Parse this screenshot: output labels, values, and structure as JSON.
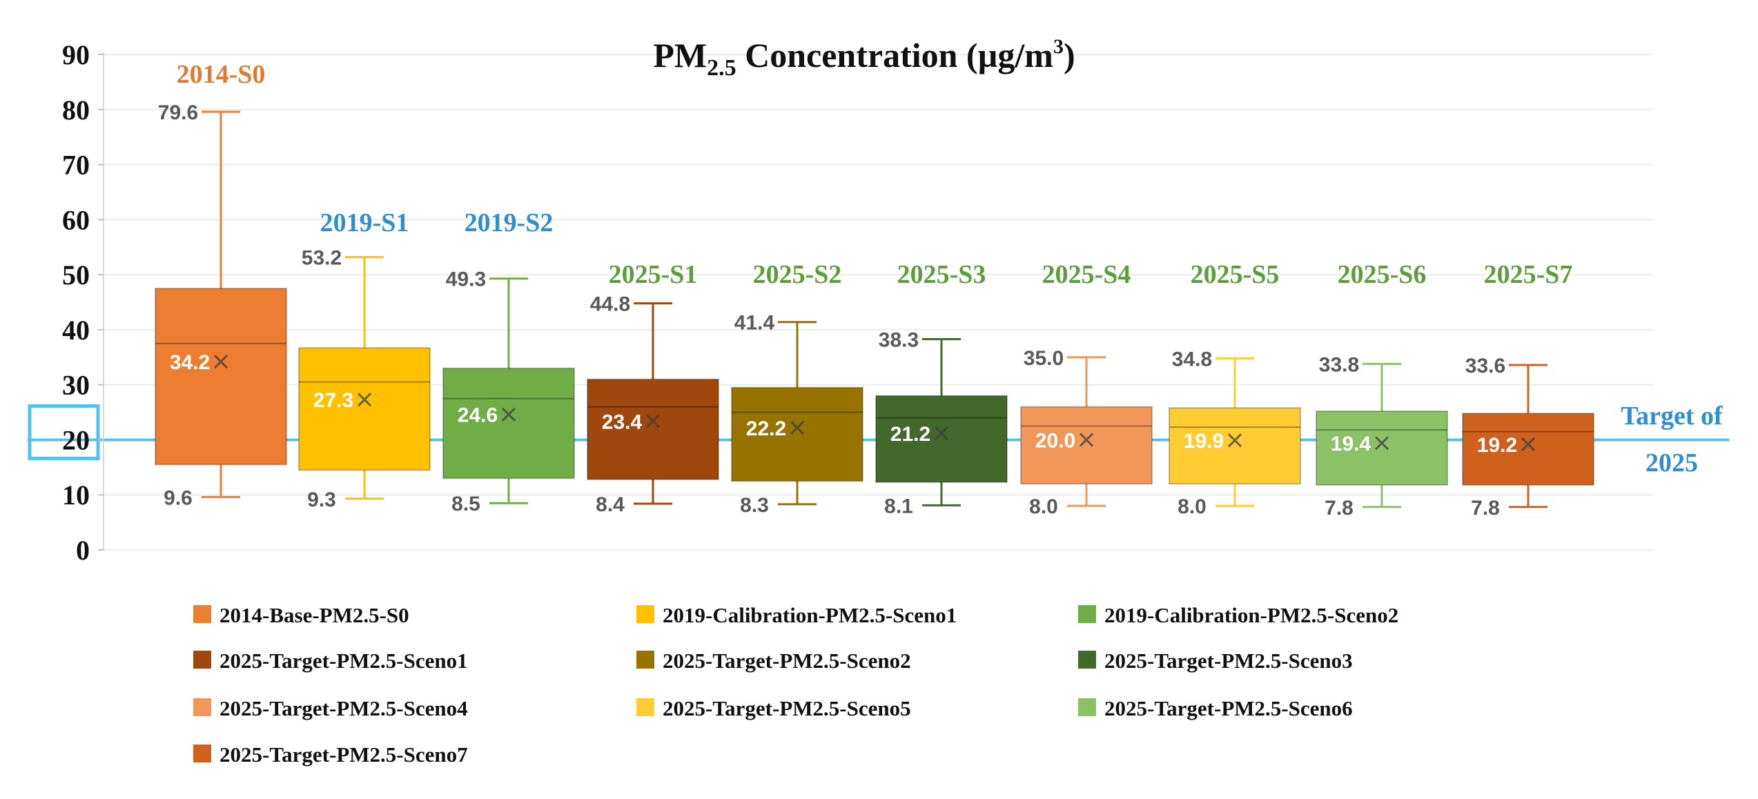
{
  "chart_data": {
    "type": "box",
    "title_main": "PM",
    "title_sub": "2.5",
    "title_rest": " Concentration (µg/m",
    "title_sup": "3",
    "title_end": ")",
    "ylim": [
      0,
      90
    ],
    "yticks": [
      0,
      10,
      20,
      30,
      40,
      50,
      60,
      70,
      80,
      90
    ],
    "target": {
      "value": 20,
      "label_line1": "Target of",
      "label_line2": "2025",
      "color": "#52c3ef",
      "text_color": "#2e8ed0"
    },
    "series": [
      {
        "label": "2014-S0",
        "legend": "2014-Base-PM2.5-S0",
        "color": "#ed7d31",
        "label_color": "#e07a2c",
        "min": 9.6,
        "q1": 15.5,
        "median": 37.5,
        "mean": 34.2,
        "q3": 47.5,
        "max": 79.6
      },
      {
        "label": "2019-S1",
        "legend": "2019-Calibration-PM2.5-Sceno1",
        "color": "#ffc000",
        "label_color": "#2e8ed0",
        "min": 9.3,
        "q1": 14.5,
        "median": 30.5,
        "mean": 27.3,
        "q3": 36.7,
        "max": 53.2
      },
      {
        "label": "2019-S2",
        "legend": "2019-Calibration-PM2.5-Sceno2",
        "color": "#70ad47",
        "label_color": "#2e8ed0",
        "min": 8.5,
        "q1": 13.0,
        "median": 27.5,
        "mean": 24.6,
        "q3": 33.0,
        "max": 49.3
      },
      {
        "label": "2025-S1",
        "legend": "2025-Target-PM2.5-Sceno1",
        "color": "#9e480e",
        "label_color": "#5e9e3a",
        "min": 8.4,
        "q1": 12.8,
        "median": 26.0,
        "mean": 23.4,
        "q3": 31.0,
        "max": 44.8
      },
      {
        "label": "2025-S2",
        "legend": "2025-Target-PM2.5-Sceno2",
        "color": "#997300",
        "label_color": "#5e9e3a",
        "min": 8.3,
        "q1": 12.5,
        "median": 25.0,
        "mean": 22.2,
        "q3": 29.5,
        "max": 41.4
      },
      {
        "label": "2025-S3",
        "legend": "2025-Target-PM2.5-Sceno3",
        "color": "#43682b",
        "label_color": "#5e9e3a",
        "min": 8.1,
        "q1": 12.3,
        "median": 24.0,
        "mean": 21.2,
        "q3": 28.0,
        "max": 38.3
      },
      {
        "label": "2025-S4",
        "legend": "2025-Target-PM2.5-Sceno4",
        "color": "#f1975a",
        "label_color": "#5e9e3a",
        "min": 8.0,
        "q1": 12.0,
        "median": 22.5,
        "mean": 20.0,
        "q3": 26.0,
        "max": 35.0
      },
      {
        "label": "2025-S5",
        "legend": "2025-Target-PM2.5-Sceno5",
        "color": "#ffcd33",
        "label_color": "#5e9e3a",
        "min": 8.0,
        "q1": 12.0,
        "median": 22.3,
        "mean": 19.9,
        "q3": 25.8,
        "max": 34.8
      },
      {
        "label": "2025-S6",
        "legend": "2025-Target-PM2.5-Sceno6",
        "color": "#8cc168",
        "label_color": "#5e9e3a",
        "min": 7.8,
        "q1": 11.8,
        "median": 21.8,
        "mean": 19.4,
        "q3": 25.2,
        "max": 33.8
      },
      {
        "label": "2025-S7",
        "legend": "2025-Target-PM2.5-Sceno7",
        "color": "#d0611c",
        "label_color": "#5e9e3a",
        "min": 7.8,
        "q1": 11.8,
        "median": 21.5,
        "mean": 19.2,
        "q3": 24.8,
        "max": 33.6
      }
    ]
  }
}
